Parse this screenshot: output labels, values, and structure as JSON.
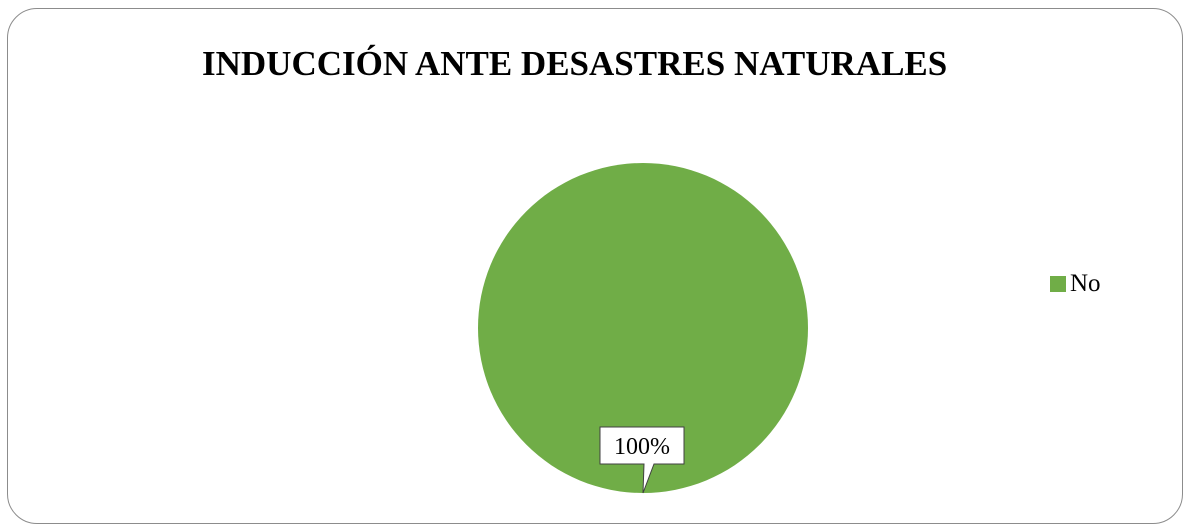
{
  "chart_data": {
    "type": "pie",
    "title": "INDUCCIÓN ANTE DESASTRES NATURALES",
    "categories": [
      "No"
    ],
    "values": [
      100
    ],
    "data_labels": [
      "100%"
    ],
    "colors": [
      "#70ad47"
    ],
    "legend_position": "right"
  }
}
